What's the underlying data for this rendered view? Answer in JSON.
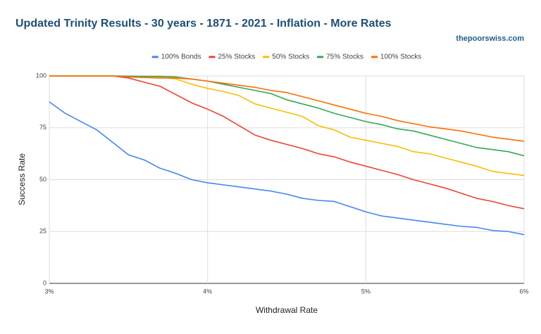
{
  "chart_data": {
    "type": "line",
    "title": "Updated Trinity Results - 30 years - 1871 - 2021 - Inflation - More Rates",
    "source": "thepoorswiss.com",
    "x_label": "Withdrawal Rate",
    "y_label": "Success Rate",
    "x": [
      3.0,
      3.1,
      3.2,
      3.3,
      3.4,
      3.5,
      3.6,
      3.7,
      3.8,
      3.9,
      4.0,
      4.1,
      4.2,
      4.3,
      4.4,
      4.5,
      4.6,
      4.7,
      4.8,
      4.9,
      5.0,
      5.1,
      5.2,
      5.3,
      5.4,
      5.5,
      5.6,
      5.7,
      5.8,
      5.9,
      6.0
    ],
    "series": [
      {
        "name": "100% Bonds",
        "color": "#4285f4",
        "values": [
          87.5,
          82,
          78,
          74,
          68,
          62,
          59.5,
          55.5,
          53,
          50,
          48.5,
          47.5,
          46.5,
          45.5,
          44.5,
          43,
          41,
          40,
          39.5,
          37,
          34.5,
          32.5,
          31.5,
          30.5,
          29.5,
          28.5,
          27.5,
          27,
          25.5,
          25,
          23.5
        ]
      },
      {
        "name": "25% Stocks",
        "color": "#ea4335",
        "values": [
          100,
          100,
          100,
          100,
          100,
          99,
          97,
          95,
          91,
          87,
          84,
          80.5,
          76,
          71.5,
          69,
          67,
          65,
          62.5,
          61,
          58.5,
          56.5,
          54.5,
          52.5,
          50,
          48,
          46,
          43.5,
          41,
          39.5,
          37.5,
          36
        ]
      },
      {
        "name": "50% Stocks",
        "color": "#fbbc04",
        "values": [
          100,
          100,
          100,
          100,
          100,
          99.8,
          99.6,
          99.5,
          98.5,
          96,
          94,
          92.5,
          90.5,
          86.5,
          84.5,
          82.5,
          80.5,
          76,
          74,
          70.5,
          69,
          67.5,
          66,
          63.5,
          62.5,
          60.5,
          58.5,
          56.5,
          54,
          53,
          52
        ]
      },
      {
        "name": "75% Stocks",
        "color": "#34a853",
        "values": [
          100,
          100,
          100,
          100,
          100,
          99.9,
          99.8,
          99.8,
          99.5,
          98.5,
          97.5,
          96,
          94.5,
          93,
          91.5,
          88.5,
          86.5,
          84.5,
          82,
          80,
          78,
          76.5,
          74.5,
          73.5,
          71.5,
          69.5,
          67.5,
          65.5,
          64.5,
          63.5,
          61.5
        ]
      },
      {
        "name": "100% Stocks",
        "color": "#ff6d01",
        "values": [
          100,
          100,
          100,
          100,
          100,
          99.5,
          99.2,
          99,
          99,
          98.5,
          97.5,
          96.5,
          95.5,
          94.5,
          93,
          92,
          90,
          88,
          86,
          84,
          82,
          80.5,
          78.5,
          77,
          75.5,
          74.5,
          73.5,
          72,
          70.5,
          69.5,
          68.5
        ]
      }
    ],
    "xlim": [
      3,
      6
    ],
    "xticks": [
      {
        "value": 3,
        "label": "3%"
      },
      {
        "value": 4,
        "label": "4%"
      },
      {
        "value": 5,
        "label": "5%"
      },
      {
        "value": 6,
        "label": "6%"
      }
    ],
    "ylim": [
      0,
      100
    ],
    "yticks": [
      0,
      25,
      50,
      75,
      100
    ],
    "grid": true,
    "legend": "top"
  }
}
